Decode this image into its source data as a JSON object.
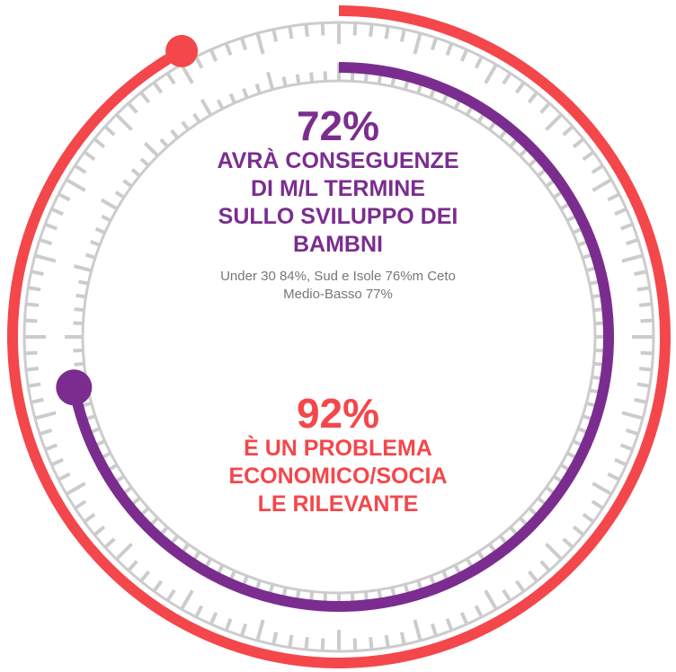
{
  "chart_data": {
    "type": "radial",
    "ylim": [
      0,
      100
    ],
    "series": [
      {
        "color": "#f4474b",
        "values": [
          92
        ],
        "value_labels": [
          "92%"
        ],
        "caption": [
          "È UN PROBLEMA",
          "ECONOMICO/SOCIA",
          "LE RILEVANTE"
        ]
      },
      {
        "color": "#7b2d8f",
        "values": [
          72
        ],
        "value_labels": [
          "72%"
        ],
        "caption": [
          "AVRÀ CONSEGUENZE",
          "DI M/L TERMINE",
          "SULLO SVILUPPO DEI",
          "BAMBNI"
        ]
      }
    ],
    "note": [
      "Under 30 84%, Sud e Isole 76%m Ceto",
      "Medio-Basso 77%"
    ]
  }
}
